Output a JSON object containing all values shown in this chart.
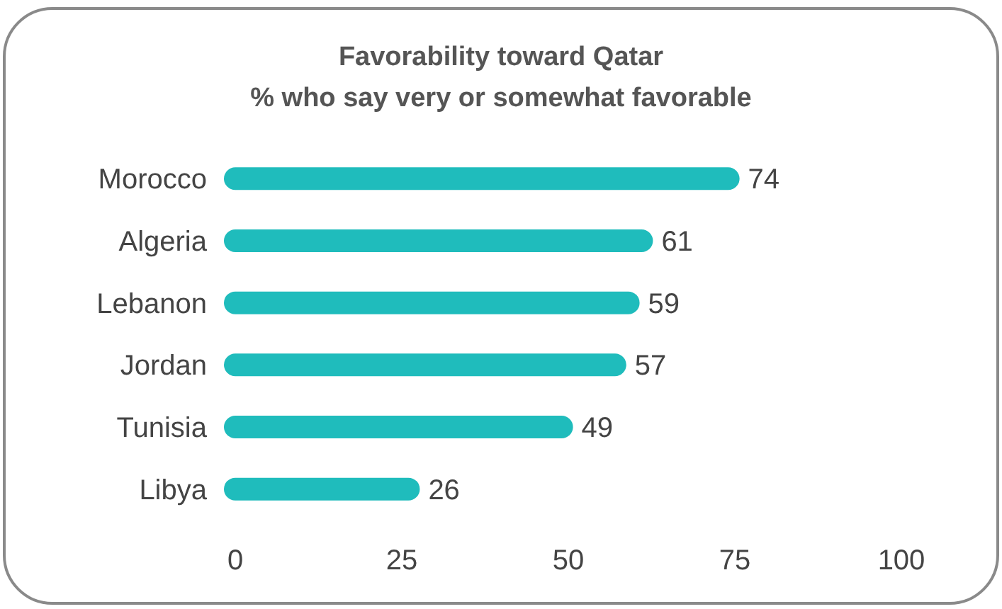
{
  "chart_data": {
    "type": "bar",
    "orientation": "horizontal",
    "title": "Favorability toward Qatar",
    "subtitle": "% who say very or somewhat favorable",
    "categories": [
      "Morocco",
      "Algeria",
      "Lebanon",
      "Jordan",
      "Tunisia",
      "Libya"
    ],
    "values": [
      74,
      61,
      59,
      57,
      49,
      26
    ],
    "color": "#1fbcbc",
    "data_labels": true,
    "grid": false,
    "xlim": [
      0,
      100
    ],
    "xticks": [
      0,
      25,
      50,
      75,
      100
    ]
  }
}
